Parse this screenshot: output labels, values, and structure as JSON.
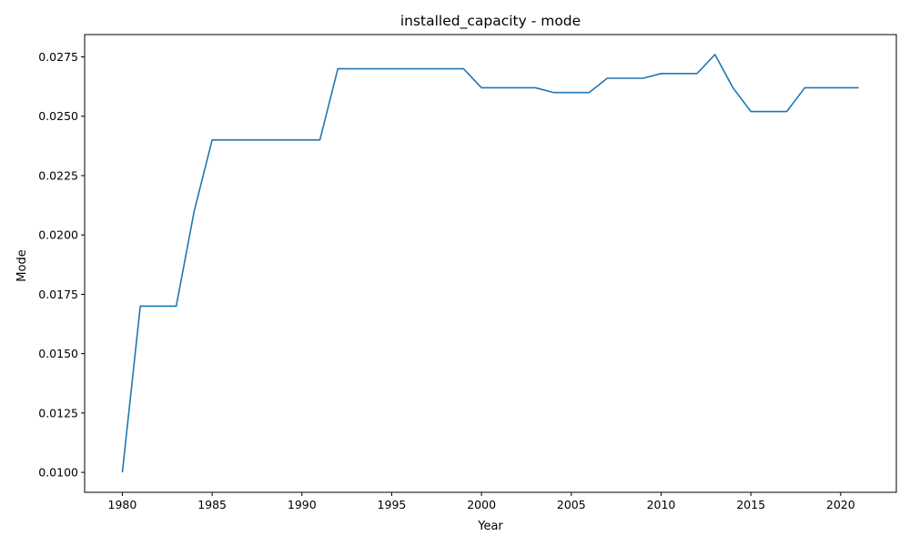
{
  "chart_data": {
    "type": "line",
    "title": "installed_capacity - mode",
    "xlabel": "Year",
    "ylabel": "Mode",
    "xlim": [
      1977.9,
      2023.1
    ],
    "ylim": [
      0.00916,
      0.02844
    ],
    "xticks": [
      1980,
      1985,
      1990,
      1995,
      2000,
      2005,
      2010,
      2015,
      2020
    ],
    "yticks": [
      0.01,
      0.0125,
      0.015,
      0.0175,
      0.02,
      0.0225,
      0.025,
      0.0275
    ],
    "ytick_labels": [
      "0.0100",
      "0.0125",
      "0.0150",
      "0.0175",
      "0.0200",
      "0.0225",
      "0.0250",
      "0.0275"
    ],
    "grid": false,
    "line_color": "#1f77b4",
    "series": [
      {
        "x": [
          1980,
          1981,
          1982,
          1983,
          1984,
          1985,
          1986,
          1987,
          1988,
          1989,
          1990,
          1991,
          1992,
          1993,
          1994,
          1995,
          1996,
          1997,
          1998,
          1999,
          2000,
          2001,
          2002,
          2003,
          2004,
          2005,
          2006,
          2007,
          2008,
          2009,
          2010,
          2011,
          2012,
          2013,
          2014,
          2015,
          2016,
          2017,
          2018,
          2019,
          2020,
          2021
        ],
        "values": [
          0.01,
          0.017,
          0.017,
          0.017,
          0.021,
          0.024,
          0.024,
          0.024,
          0.024,
          0.024,
          0.024,
          0.024,
          0.027,
          0.027,
          0.027,
          0.027,
          0.027,
          0.027,
          0.027,
          0.027,
          0.0262,
          0.0262,
          0.0262,
          0.0262,
          0.026,
          0.026,
          0.026,
          0.0266,
          0.0266,
          0.0266,
          0.0268,
          0.0268,
          0.0268,
          0.0276,
          0.0262,
          0.0252,
          0.0252,
          0.0252,
          0.0262,
          0.0262,
          0.0262,
          0.0262
        ]
      }
    ]
  }
}
